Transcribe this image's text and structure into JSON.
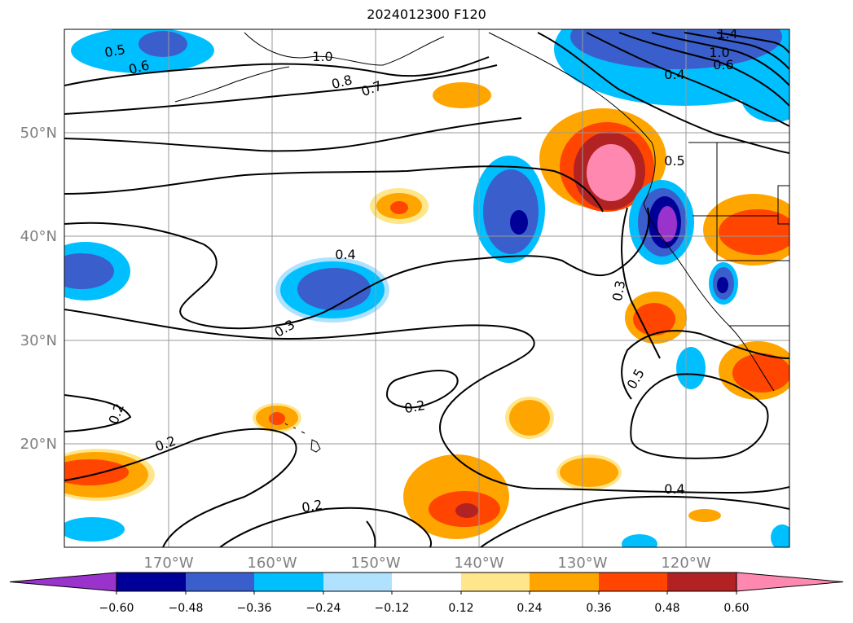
{
  "title": "2024012300 F120",
  "map": {
    "lat_labels": [
      "50°N",
      "40°N",
      "30°N",
      "20°N"
    ],
    "lon_labels": [
      "170°W",
      "160°W",
      "150°W",
      "140°W",
      "130°W",
      "120°W"
    ],
    "contour_labels": [
      "0.5",
      "0.6",
      "1.0",
      "0.8",
      "0.7",
      "1.4",
      "1.0",
      "0.4",
      "0.6",
      "0.5",
      "0.4",
      "0.3",
      "0.3",
      "0.5",
      "0.2",
      "0.2",
      "0.2",
      "0.2",
      "0.4"
    ],
    "graticule_color": "#999999",
    "tick_label_color": "#808080"
  },
  "colorbar": {
    "tick_labels": [
      "−0.60",
      "−0.48",
      "−0.36",
      "−0.24",
      "−0.12",
      "0.12",
      "0.24",
      "0.36",
      "0.48",
      "0.60"
    ],
    "colors": [
      "#9933cc",
      "#000099",
      "#3a5fcd",
      "#00bfff",
      "#b0e2ff",
      "#ffffff",
      "#ffe68a",
      "#ffa500",
      "#ff4500",
      "#b22222",
      "#ff88b0"
    ]
  }
}
